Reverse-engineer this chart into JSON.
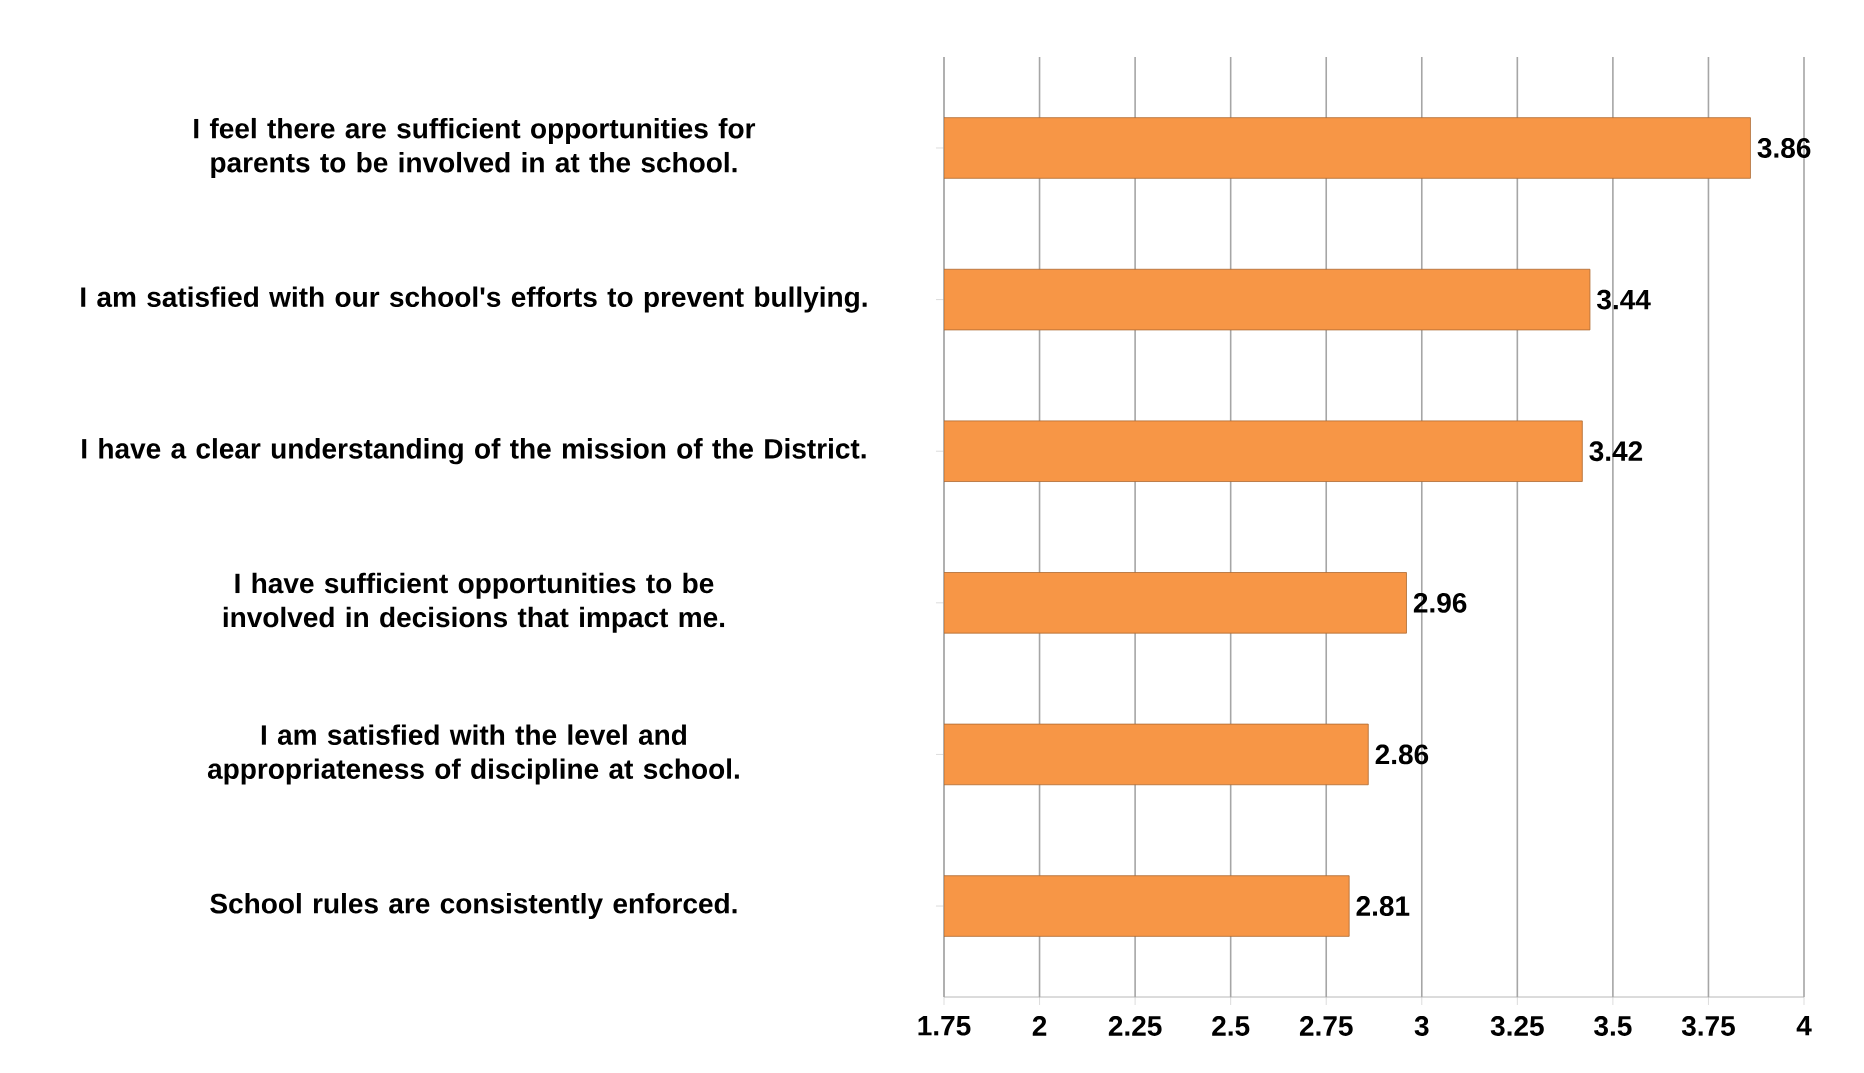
{
  "chart_data": {
    "type": "bar",
    "orientation": "horizontal",
    "categories": [
      "I feel there are sufficient opportunities for parents to be involved in at the school.",
      "I am satisfied with our school's efforts to prevent bullying.",
      "I have a clear understanding of the mission of the District.",
      "I have sufficient opportunities to be involved in decisions that impact me.",
      "I am satisfied with the level and appropriateness of discipline at school.",
      "School rules are consistently enforced."
    ],
    "values": [
      3.86,
      3.44,
      3.42,
      2.96,
      2.86,
      2.81
    ],
    "color": "#f79646",
    "xlim": [
      1.75,
      4
    ],
    "xticks": [
      1.75,
      2,
      2.25,
      2.5,
      2.75,
      3,
      3.25,
      3.5,
      3.75,
      4
    ],
    "grid": "x",
    "data_labels": true
  }
}
